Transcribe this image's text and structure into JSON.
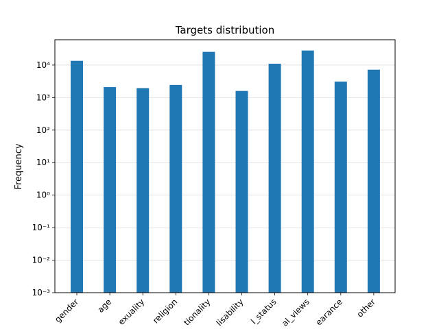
{
  "chart_data": {
    "type": "bar",
    "title": "Targets distribution",
    "xlabel": "",
    "ylabel": "Frequency",
    "yscale": "log",
    "ylim": [
      0.001,
      60000
    ],
    "grid": "y-major",
    "bar_color": "#1f77b4",
    "categories": [
      "gender",
      "age",
      "sexuality",
      "religion",
      "nationality",
      "disability",
      "social_status",
      "political_views",
      "appearance",
      "other"
    ],
    "tick_labels_visible": [
      "gender",
      "age",
      "exuality",
      "religion",
      "tionality",
      "lisability",
      "l_status",
      "al_views",
      "earance",
      "other"
    ],
    "values": [
      13500,
      2100,
      1950,
      2450,
      25500,
      1600,
      11000,
      28000,
      3100,
      7200
    ],
    "ytick_labels": [
      "10⁻³",
      "10⁻²",
      "10⁻¹",
      "10⁰",
      "10¹",
      "10²",
      "10³",
      "10⁴"
    ]
  }
}
